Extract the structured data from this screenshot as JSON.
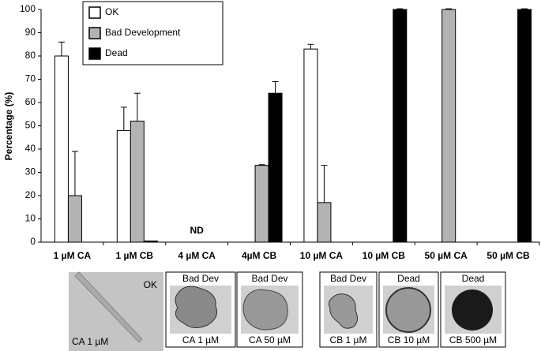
{
  "chart_data": {
    "type": "bar",
    "y_label": "Percentage (%)",
    "categories": [
      "1 µM CA",
      "1 µM CB",
      "4 µM CA",
      "4µM CB",
      "10 µM CA",
      "10 µM CB",
      "50 µM CA",
      "50 µM CB"
    ],
    "series": [
      {
        "name": "OK",
        "color": "#ffffff",
        "values": [
          80,
          48,
          null,
          0,
          83,
          0,
          0,
          0
        ],
        "errors": [
          6,
          10,
          null,
          null,
          2,
          null,
          null,
          null
        ]
      },
      {
        "name": "Bad Development",
        "color": "#b3b3b3",
        "values": [
          20,
          52,
          null,
          33,
          17,
          0,
          100,
          0
        ],
        "errors": [
          19,
          12,
          null,
          0.3,
          16,
          null,
          0.3,
          null
        ]
      },
      {
        "name": "Dead",
        "color": "#000000",
        "values": [
          0,
          0.5,
          null,
          64,
          0,
          100,
          0,
          100
        ],
        "errors": [
          null,
          null,
          null,
          5,
          null,
          0.3,
          null,
          0.3
        ]
      }
    ],
    "annotations": [
      "ND"
    ],
    "ylim": [
      0,
      100
    ],
    "yticks": [
      0,
      10,
      20,
      30,
      40,
      50,
      60,
      70,
      80,
      90,
      100
    ],
    "grid": false,
    "legend": "upper left"
  },
  "panels": [
    {
      "top": "OK",
      "bottom": "CA 1 µM"
    },
    {
      "top": "Bad Dev",
      "bottom": "CA 1 µM"
    },
    {
      "top": "Bad Dev",
      "bottom": "CA 50 µM"
    },
    {
      "top": "Bad Dev",
      "bottom": "CB 1 µM"
    },
    {
      "top": "Dead",
      "bottom": "CB 10 µM"
    },
    {
      "top": "Dead",
      "bottom": "CB 500 µM"
    }
  ]
}
